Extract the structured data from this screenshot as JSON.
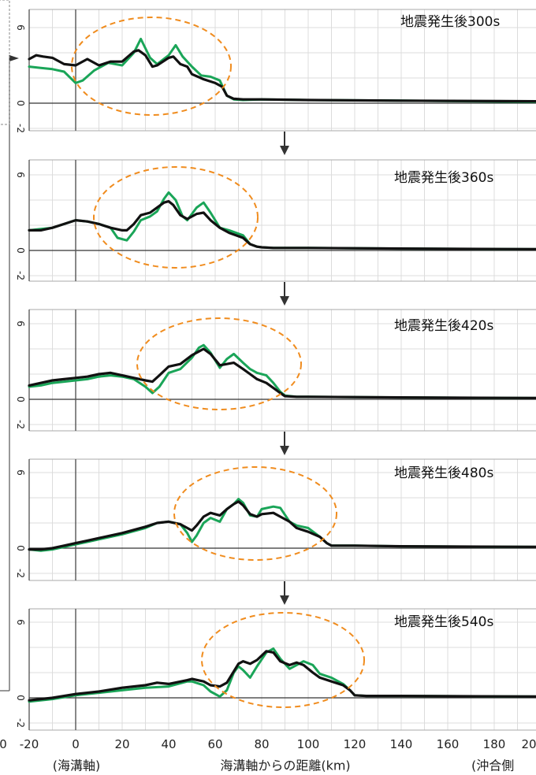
{
  "colors": {
    "black_series": "#111111",
    "green_series": "#1aa558",
    "ellipse": "#f08c1e",
    "grid": "#dcdcdc",
    "arrow": "#333333"
  },
  "x_axis": {
    "ticks": [
      "-20",
      "0",
      "20",
      "40",
      "60",
      "80",
      "100",
      "120",
      "140",
      "160",
      "180",
      "20"
    ],
    "left_edge_label": "0",
    "sub_labels": {
      "trench_axis": "(海溝軸)",
      "offshore": "(沖合側",
      "title": "海溝軸からの距離(km)"
    }
  },
  "chart_data": [
    {
      "type": "line",
      "title": "地震発生後300s",
      "y_ticks": [
        "6",
        "0",
        "-2"
      ],
      "ylim": [
        -2,
        6
      ],
      "xlim": [
        -20,
        200
      ],
      "series": [
        {
          "color": "#1aa558",
          "x": [
            -20,
            -15,
            -10,
            -5,
            0,
            3,
            8,
            14,
            20,
            25,
            28,
            32,
            35,
            40,
            43,
            46,
            50,
            54,
            58,
            62,
            65,
            68,
            72,
            80,
            100,
            140,
            200
          ],
          "y": [
            2.9,
            2.8,
            2.7,
            2.5,
            1.6,
            1.8,
            2.6,
            3.2,
            3.0,
            4.0,
            5.1,
            3.6,
            3.1,
            3.8,
            4.6,
            3.7,
            2.9,
            2.2,
            2.1,
            1.8,
            0.6,
            0.3,
            0.25,
            0.3,
            0.25,
            0.2,
            0.1
          ]
        },
        {
          "color": "#111111",
          "x": [
            -20,
            -17,
            -14,
            -10,
            -5,
            0,
            5,
            10,
            15,
            20,
            25,
            27,
            30,
            33,
            35,
            40,
            42,
            45,
            48,
            50,
            55,
            60,
            63,
            65,
            68,
            72,
            80,
            100,
            140,
            200
          ],
          "y": [
            3.5,
            3.8,
            3.7,
            3.6,
            3.1,
            3.0,
            3.5,
            3.0,
            3.3,
            3.3,
            4.1,
            4.2,
            3.8,
            2.9,
            3.0,
            3.6,
            3.7,
            3.1,
            2.9,
            2.3,
            1.9,
            1.6,
            1.3,
            0.6,
            0.35,
            0.3,
            0.3,
            0.25,
            0.2,
            0.15
          ]
        }
      ]
    },
    {
      "type": "line",
      "title": "地震発生後360s",
      "y_ticks": [
        "6",
        "0",
        "-2"
      ],
      "ylim": [
        -2,
        6
      ],
      "xlim": [
        -20,
        200
      ],
      "series": [
        {
          "color": "#1aa558",
          "x": [
            -20,
            -15,
            -10,
            -5,
            0,
            5,
            10,
            15,
            18,
            22,
            25,
            28,
            32,
            35,
            38,
            40,
            43,
            46,
            48,
            52,
            55,
            58,
            62,
            66,
            72,
            75,
            78,
            80,
            85,
            100,
            140,
            200
          ],
          "y": [
            1.6,
            1.7,
            1.8,
            2.1,
            2.4,
            2.3,
            2.1,
            1.8,
            1.0,
            0.8,
            1.5,
            2.4,
            2.7,
            3.1,
            4.1,
            4.6,
            4.0,
            2.7,
            2.4,
            3.4,
            3.8,
            3.0,
            1.8,
            1.6,
            1.2,
            0.5,
            0.3,
            0.25,
            0.2,
            0.2,
            0.15,
            0.1
          ]
        },
        {
          "color": "#111111",
          "x": [
            -20,
            -15,
            -10,
            -5,
            0,
            5,
            10,
            15,
            20,
            22,
            25,
            28,
            32,
            35,
            38,
            40,
            42,
            45,
            48,
            52,
            55,
            58,
            62,
            66,
            72,
            75,
            78,
            80,
            85,
            100,
            140,
            200
          ],
          "y": [
            1.6,
            1.6,
            1.8,
            2.1,
            2.4,
            2.3,
            2.1,
            1.8,
            1.6,
            1.6,
            2.1,
            2.8,
            3.0,
            3.4,
            3.8,
            3.9,
            3.6,
            2.8,
            2.5,
            2.9,
            3.0,
            2.4,
            1.8,
            1.4,
            1.0,
            0.5,
            0.3,
            0.25,
            0.2,
            0.2,
            0.15,
            0.1
          ]
        }
      ]
    },
    {
      "type": "line",
      "title": "地震発生後420s",
      "y_ticks": [
        "6",
        "0",
        "-2"
      ],
      "ylim": [
        -2,
        6
      ],
      "xlim": [
        -20,
        200
      ],
      "series": [
        {
          "color": "#1aa558",
          "x": [
            -20,
            -15,
            -10,
            -5,
            0,
            5,
            10,
            15,
            20,
            25,
            30,
            33,
            36,
            40,
            45,
            50,
            53,
            55,
            58,
            62,
            65,
            68,
            72,
            75,
            78,
            82,
            85,
            88,
            90,
            95,
            100,
            140,
            200
          ],
          "y": [
            1.0,
            1.1,
            1.3,
            1.4,
            1.5,
            1.6,
            1.8,
            1.9,
            1.8,
            1.6,
            1.0,
            0.5,
            1.0,
            2.1,
            2.4,
            3.3,
            4.1,
            4.3,
            3.7,
            2.5,
            3.2,
            3.6,
            2.9,
            2.4,
            2.1,
            1.9,
            1.3,
            0.6,
            0.3,
            0.2,
            0.2,
            0.15,
            0.1
          ]
        },
        {
          "color": "#111111",
          "x": [
            -20,
            -15,
            -10,
            -5,
            0,
            5,
            10,
            15,
            20,
            25,
            30,
            33,
            36,
            40,
            45,
            50,
            53,
            55,
            58,
            62,
            65,
            68,
            72,
            75,
            78,
            82,
            85,
            88,
            90,
            95,
            100,
            140,
            200
          ],
          "y": [
            1.1,
            1.3,
            1.5,
            1.6,
            1.7,
            1.8,
            2.0,
            2.1,
            1.9,
            1.7,
            1.5,
            1.4,
            1.9,
            2.6,
            2.8,
            3.5,
            3.8,
            4.0,
            3.6,
            2.7,
            2.8,
            2.9,
            2.4,
            2.0,
            1.6,
            1.3,
            0.9,
            0.5,
            0.25,
            0.2,
            0.2,
            0.15,
            0.1
          ]
        }
      ]
    },
    {
      "type": "line",
      "title": "地震発生後480s",
      "y_ticks": [
        "6",
        "0",
        "-2"
      ],
      "ylim": [
        -2,
        6
      ],
      "xlim": [
        -20,
        200
      ],
      "series": [
        {
          "color": "#1aa558",
          "x": [
            -20,
            -15,
            -10,
            -5,
            0,
            5,
            10,
            20,
            30,
            35,
            40,
            45,
            48,
            50,
            52,
            55,
            58,
            62,
            65,
            68,
            70,
            72,
            75,
            78,
            80,
            85,
            88,
            92,
            95,
            100,
            105,
            108,
            110,
            120,
            140,
            200
          ],
          "y": [
            -0.1,
            -0.2,
            -0.1,
            0.1,
            0.3,
            0.5,
            0.7,
            1.1,
            1.6,
            2.0,
            2.1,
            1.9,
            1.2,
            0.5,
            1.0,
            2.0,
            2.4,
            2.1,
            3.1,
            3.5,
            3.9,
            3.6,
            2.6,
            2.5,
            3.1,
            3.3,
            3.2,
            2.1,
            1.8,
            1.6,
            0.9,
            0.4,
            0.2,
            0.2,
            0.15,
            0.1
          ]
        },
        {
          "color": "#111111",
          "x": [
            -20,
            -15,
            -10,
            -5,
            0,
            5,
            10,
            20,
            30,
            35,
            40,
            45,
            48,
            50,
            52,
            55,
            58,
            62,
            65,
            68,
            70,
            72,
            75,
            78,
            80,
            85,
            88,
            92,
            95,
            100,
            105,
            108,
            110,
            120,
            140,
            200
          ],
          "y": [
            -0.1,
            -0.1,
            0.0,
            0.2,
            0.4,
            0.6,
            0.8,
            1.2,
            1.7,
            2.0,
            2.1,
            1.9,
            1.6,
            1.4,
            1.8,
            2.5,
            2.8,
            2.6,
            3.1,
            3.5,
            3.7,
            3.4,
            2.7,
            2.5,
            2.7,
            2.8,
            2.5,
            2.1,
            1.6,
            1.3,
            0.9,
            0.4,
            0.2,
            0.2,
            0.15,
            0.1
          ]
        }
      ]
    },
    {
      "type": "line",
      "title": "地震発生後540s",
      "y_ticks": [
        "6",
        "0",
        "-2"
      ],
      "ylim": [
        -2,
        6
      ],
      "xlim": [
        -20,
        200
      ],
      "series": [
        {
          "color": "#1aa558",
          "x": [
            -20,
            -10,
            0,
            10,
            20,
            30,
            40,
            48,
            50,
            55,
            58,
            62,
            65,
            68,
            70,
            72,
            75,
            78,
            82,
            85,
            88,
            92,
            95,
            98,
            102,
            105,
            110,
            115,
            118,
            120,
            125,
            140,
            200
          ],
          "y": [
            -0.3,
            -0.1,
            0.2,
            0.4,
            0.6,
            0.8,
            0.9,
            1.3,
            1.3,
            1.0,
            0.5,
            0.1,
            0.6,
            2.0,
            2.5,
            2.2,
            1.6,
            2.5,
            3.6,
            3.9,
            3.1,
            2.3,
            2.6,
            2.9,
            2.6,
            1.9,
            1.6,
            1.1,
            0.6,
            0.2,
            0.15,
            0.15,
            0.1
          ]
        },
        {
          "color": "#111111",
          "x": [
            -20,
            -10,
            0,
            10,
            20,
            30,
            35,
            40,
            48,
            50,
            55,
            58,
            62,
            65,
            68,
            70,
            72,
            75,
            78,
            82,
            85,
            88,
            92,
            95,
            98,
            102,
            105,
            110,
            115,
            118,
            120,
            125,
            140,
            200
          ],
          "y": [
            -0.2,
            0.0,
            0.3,
            0.5,
            0.8,
            1.0,
            1.2,
            1.1,
            1.4,
            1.5,
            1.3,
            1.0,
            0.9,
            1.2,
            2.1,
            2.7,
            2.9,
            2.7,
            3.0,
            3.7,
            3.6,
            2.9,
            2.6,
            2.8,
            2.6,
            2.0,
            1.6,
            1.3,
            1.0,
            0.6,
            0.2,
            0.15,
            0.15,
            0.1
          ]
        }
      ]
    }
  ]
}
